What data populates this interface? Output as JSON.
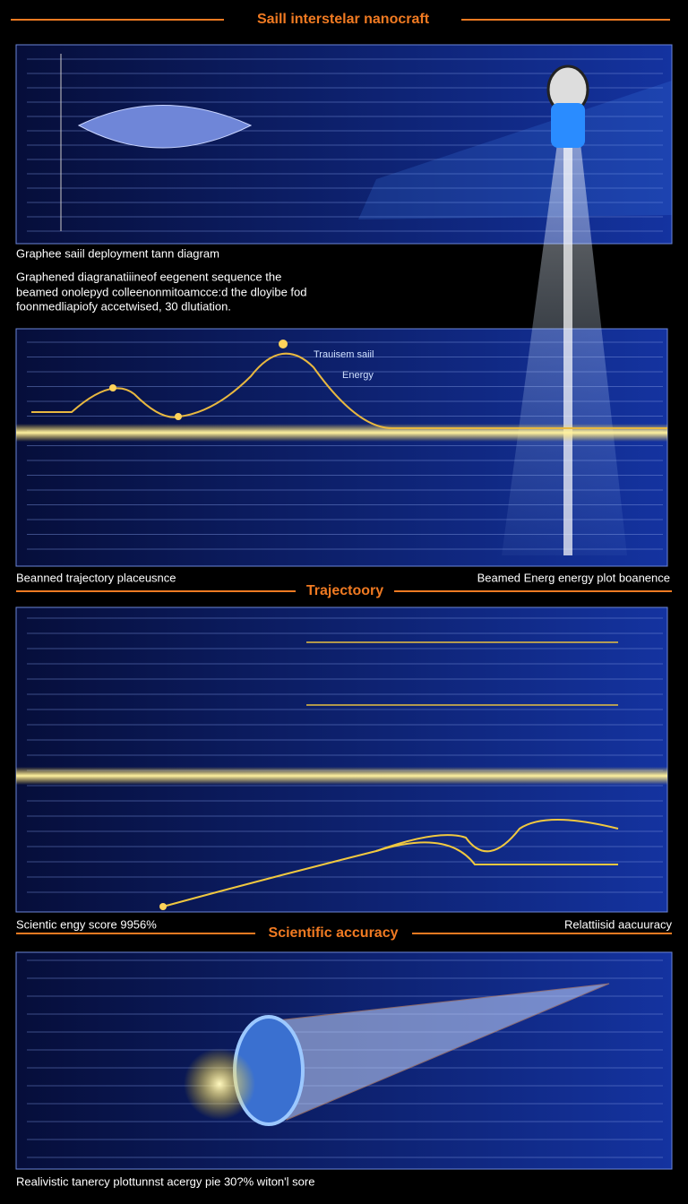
{
  "header": {
    "title": "Saill interstelar nanocraft"
  },
  "panel1": {
    "caption": "Graphee saiil deployment tann diagram",
    "description": [
      "Graphened diagranatiiineof eegenent sequence the",
      "beamed onolepyd colleenonmitoamcce:d the dloyibe fod",
      "foonmedliapiofy accetwised, 30 dlutiation."
    ]
  },
  "panel2": {
    "labels": [
      "Trauisem saiil",
      "Energy"
    ],
    "caption_left": "Beanned trajectory placeusnce",
    "caption_right": "Beamed Energ energy plot boanence"
  },
  "section1": "Trajectoory",
  "panel3": {
    "caption_left": "Scientic engy score 9956%",
    "caption_right": "Relattiisid aacuuracy"
  },
  "section2": "Scientific accuracy",
  "panel4": {
    "caption": "Realivistic tanercy plottunnst acergy pie 30?% witon'l sore"
  }
}
